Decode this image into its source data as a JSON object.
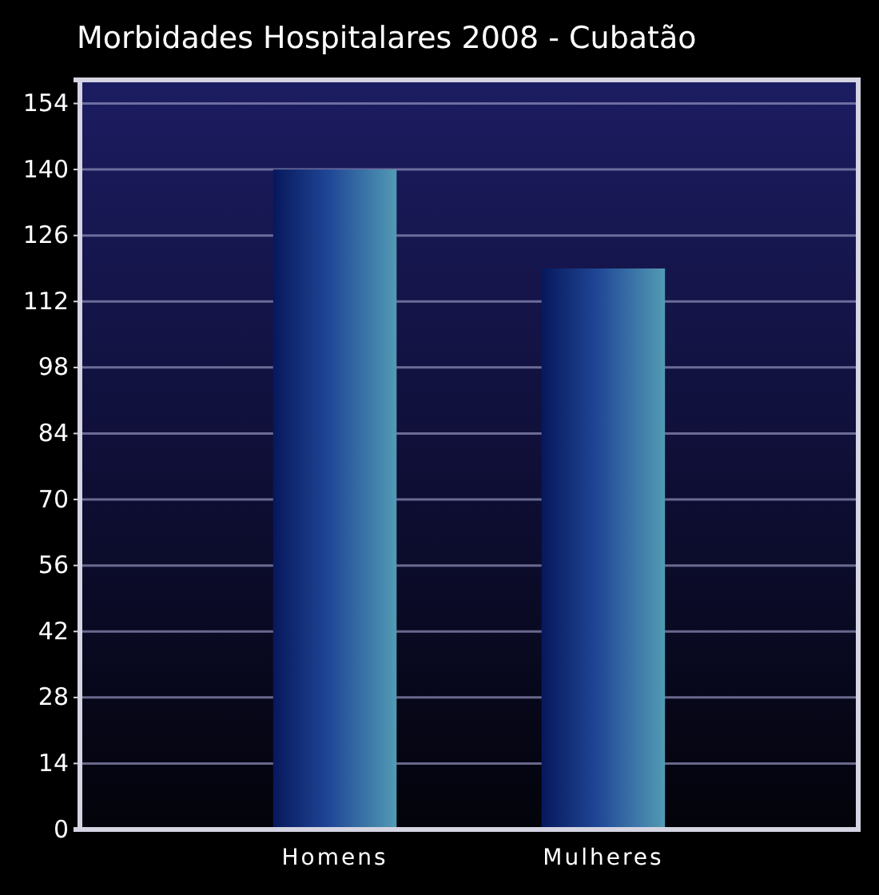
{
  "chart_data": {
    "type": "bar",
    "title": "Morbidades Hospitalares 2008 - Cubatão",
    "categories": [
      "Homens",
      "Mulheres"
    ],
    "values": [
      140,
      119
    ],
    "color": "#1f4696",
    "ylim": [
      0,
      159
    ],
    "yticks": [
      0,
      14,
      28,
      42,
      56,
      70,
      84,
      98,
      112,
      126,
      140,
      154
    ],
    "grid": "y"
  }
}
